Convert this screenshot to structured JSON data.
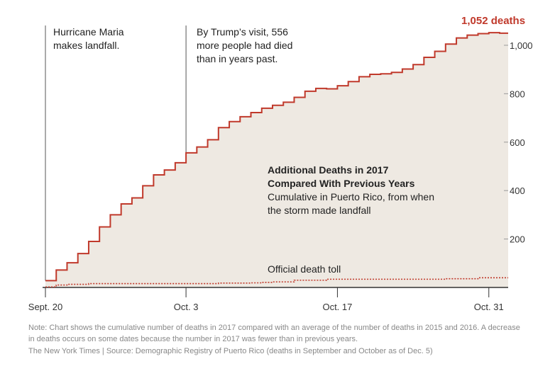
{
  "chart_data": {
    "type": "area",
    "title": "Additional Deaths in 2017\nCompared With Previous Years",
    "subtitle": "Cumulative in Puerto Rico, from when\nthe storm made landfall",
    "x_ticks": [
      "Sept. 20",
      "Oct. 3",
      "Oct. 17",
      "Oct. 31"
    ],
    "x_tick_days": [
      0,
      13,
      27,
      41
    ],
    "y_ticks": [
      "200",
      "400",
      "600",
      "800",
      "1,000"
    ],
    "y_tick_values": [
      200,
      400,
      600,
      800,
      1000
    ],
    "ylim": [
      0,
      1070
    ],
    "colors": {
      "line": "#c0392b",
      "fill": "#eee9e2",
      "axis": "#333333",
      "gridtext": "#333333"
    },
    "series": [
      {
        "values": [
          28,
          72,
          102,
          140,
          190,
          250,
          300,
          345,
          370,
          420,
          465,
          485,
          515,
          556,
          580,
          610,
          660,
          685,
          705,
          722,
          740,
          752,
          765,
          785,
          810,
          822,
          820,
          833,
          850,
          870,
          880,
          882,
          888,
          902,
          920,
          950,
          975,
          1005,
          1030,
          1042,
          1048,
          1052,
          1050
        ]
      },
      {
        "name": "Official death toll",
        "values": [
          2,
          10,
          13,
          13,
          16,
          16,
          16,
          16,
          16,
          16,
          16,
          16,
          16,
          16,
          16,
          16,
          18,
          18,
          18,
          19,
          21,
          23,
          23,
          30,
          30,
          30,
          34,
          34,
          34,
          34,
          34,
          34,
          34,
          34,
          34,
          34,
          34,
          36,
          36,
          36,
          40,
          40,
          40
        ]
      }
    ],
    "final_label": "1,052 deaths",
    "annotations": {
      "landfall": "Hurricane Maria\nmakes landfall.",
      "trump": "By Trump’s visit, 556\nmore people had died\nthan in years past.",
      "official": "Official death toll"
    },
    "annotation_days": {
      "landfall": 0,
      "trump": 13
    }
  },
  "footer": {
    "note": "Note: Chart shows the cumulative number of deaths in 2017 compared with an average of the number of deaths in 2015 and 2016. A decrease in deaths occurs on some dates because the number in 2017 was fewer than in previous years.",
    "source": "The New York Times | Source: Demographic Registry of Puerto Rico (deaths in September and October as of Dec. 5)"
  }
}
